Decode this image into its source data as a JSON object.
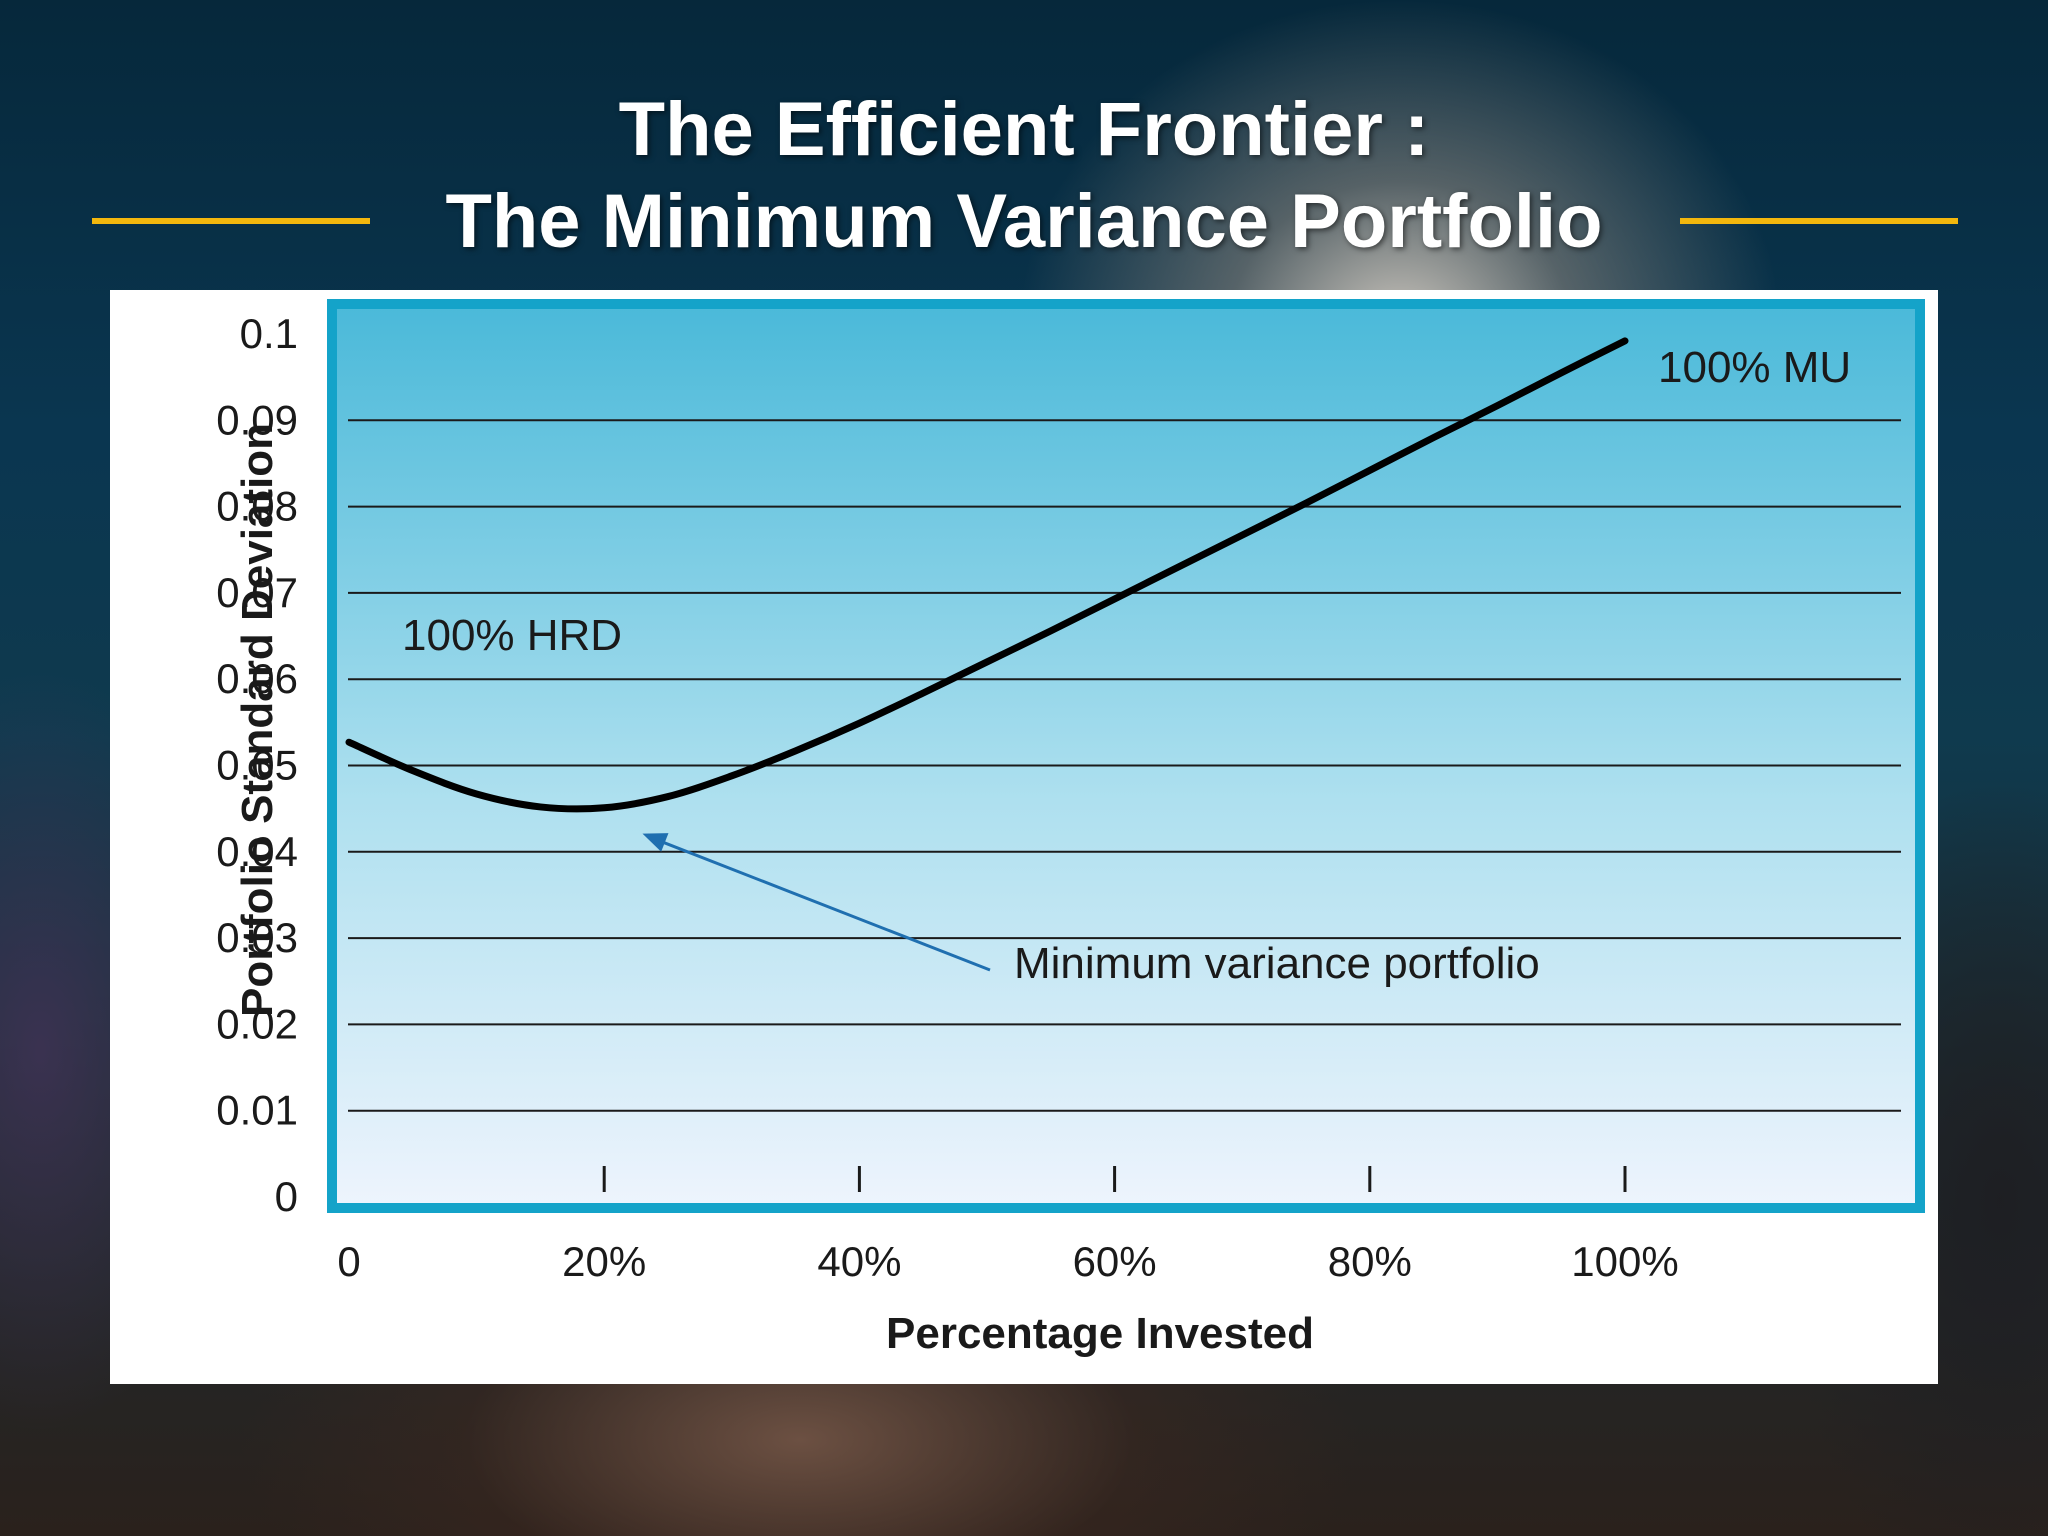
{
  "slide": {
    "title_line1": "The Efficient Frontier :",
    "title_line2": "The Minimum Variance Portfolio"
  },
  "colors": {
    "accent_rule": "#f3b70d",
    "plot_border": "#14a3c9",
    "plot_top": "#4ab9d9",
    "plot_bottom": "#eef4fd",
    "curve": "#000000",
    "arrow": "#1f6fb0"
  },
  "chart_data": {
    "type": "line",
    "title": "",
    "xlabel": "Percentage Invested",
    "ylabel": "Portfolio Standard Deviation",
    "xlim": [
      0,
      100
    ],
    "ylim": [
      0,
      0.1
    ],
    "grid": true,
    "yticks": [
      "0",
      "0.01",
      "0.02",
      "0.03",
      "0.04",
      "0.05",
      "0.06",
      "0.07",
      "0.08",
      "0.09",
      "0.1"
    ],
    "xticks": [
      "0",
      "20%",
      "40%",
      "60%",
      "80%",
      "100%"
    ],
    "series": [
      {
        "x": [
          0,
          5,
          10,
          15,
          20,
          25,
          30,
          35,
          40,
          45,
          50,
          55,
          60,
          65,
          70,
          75,
          80,
          85,
          90,
          95,
          100
        ],
        "y": [
          0.0527,
          0.0494,
          0.0467,
          0.0452,
          0.0451,
          0.0464,
          0.0488,
          0.0517,
          0.0549,
          0.0584,
          0.062,
          0.0656,
          0.0693,
          0.073,
          0.0767,
          0.0804,
          0.0842,
          0.088,
          0.0917,
          0.0955,
          0.0992
        ]
      }
    ],
    "annotations": [
      {
        "text": "100% HRD"
      },
      {
        "text": "100% MU"
      },
      {
        "text": "Minimum variance portfolio",
        "points_to": {
          "x": 23,
          "y": 0.0421
        }
      }
    ]
  }
}
